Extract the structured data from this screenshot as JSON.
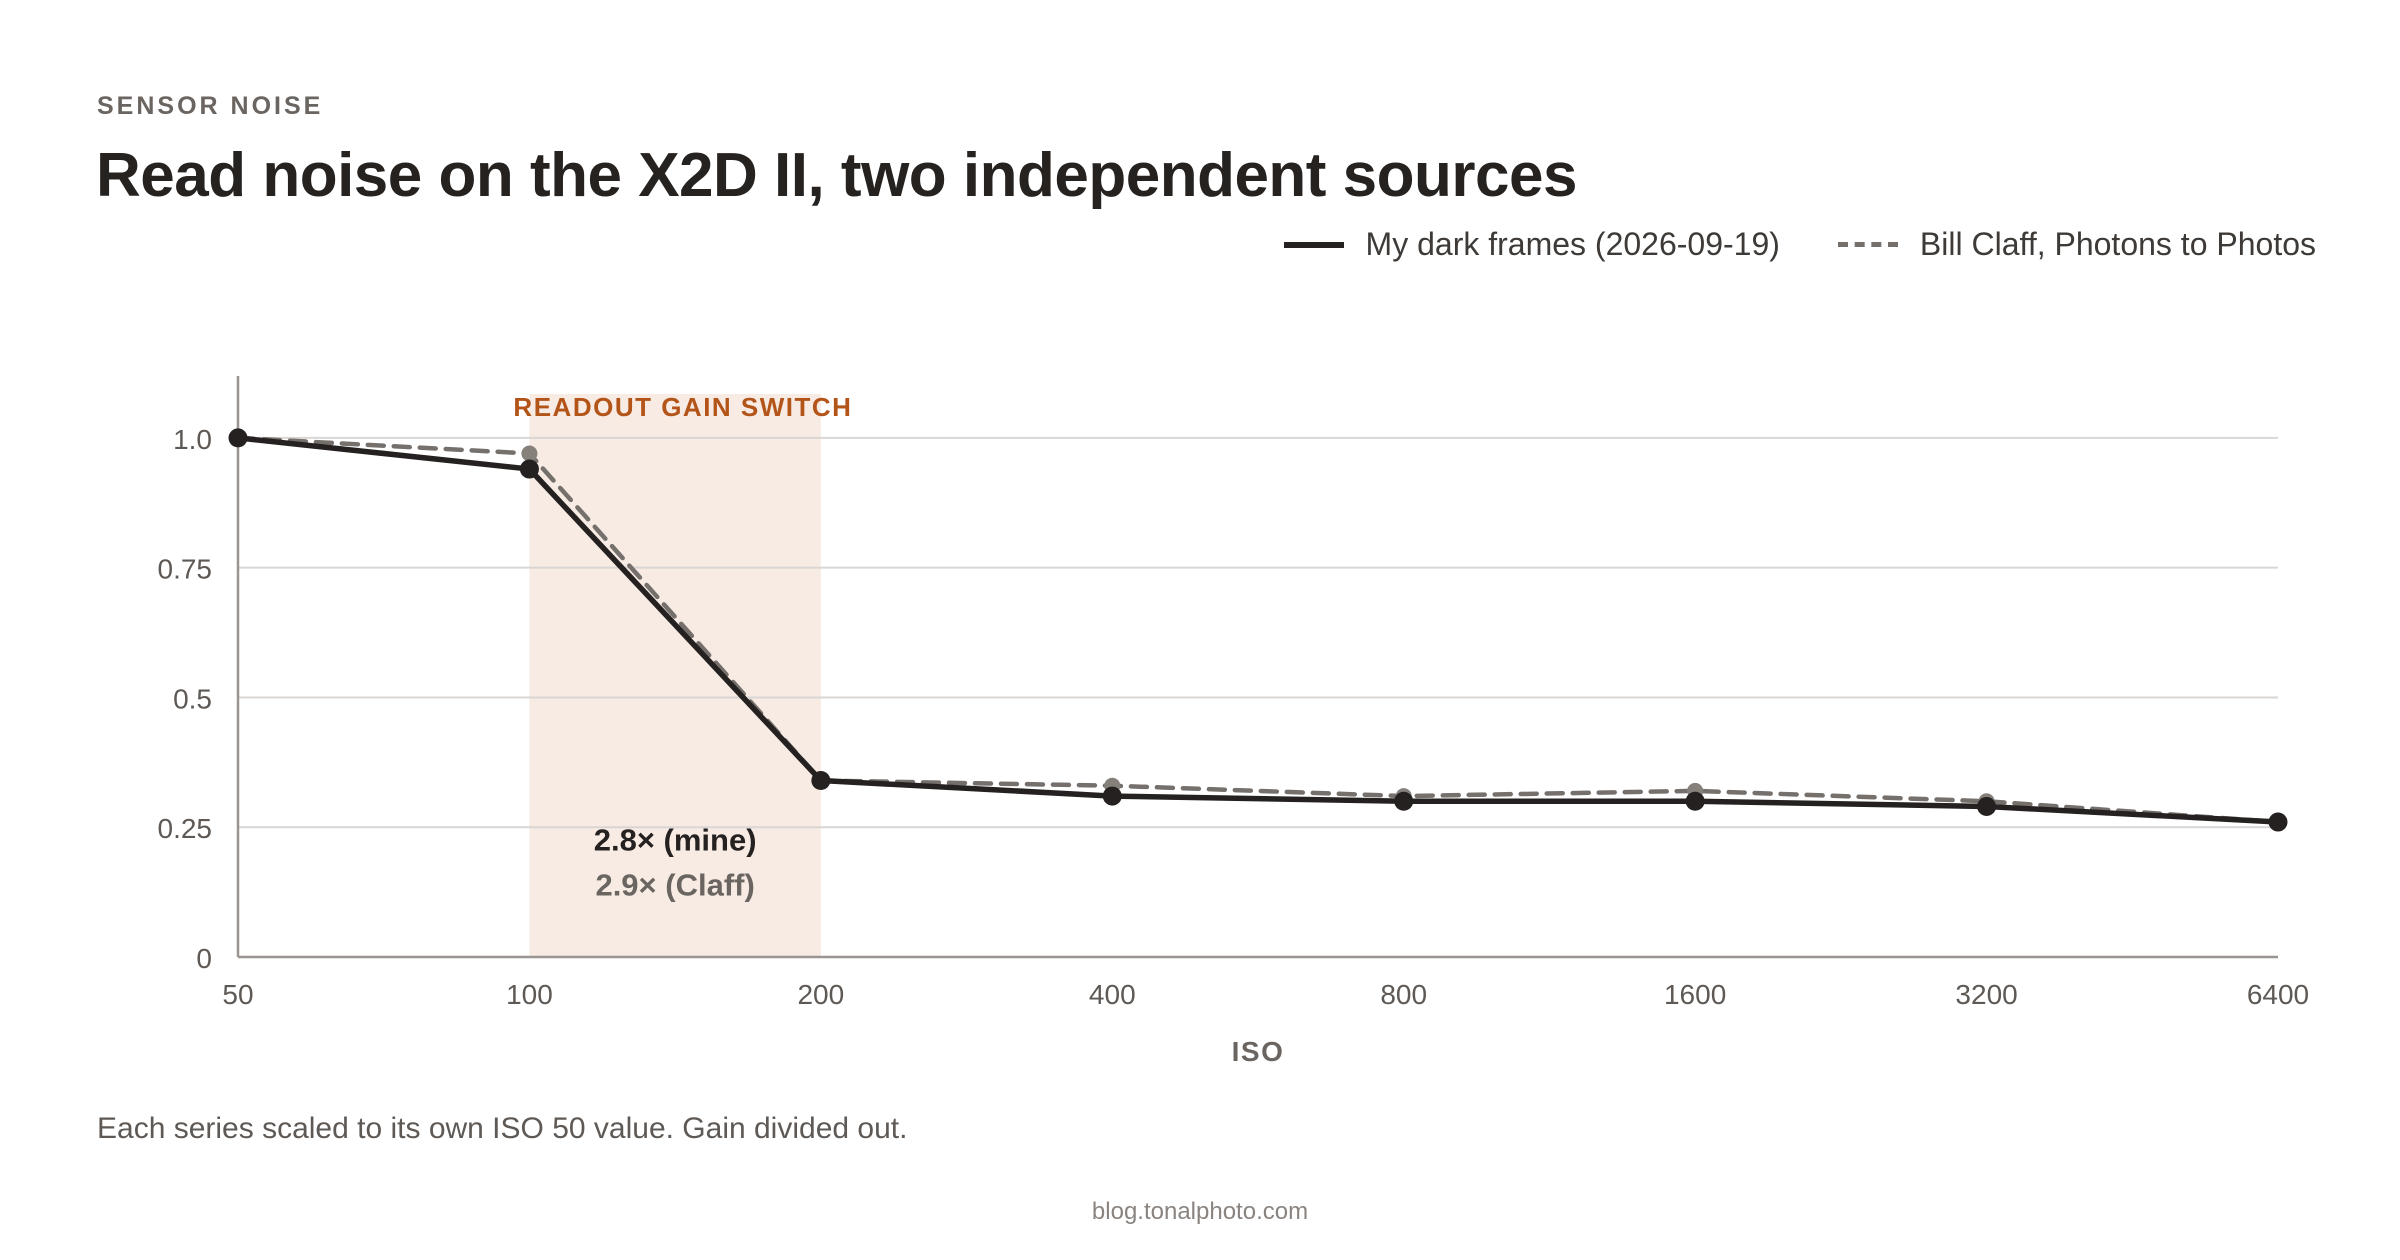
{
  "header": {
    "kicker": "SENSOR NOISE",
    "title": "Read noise on the X2D II, two independent sources"
  },
  "legend": {
    "placement": "top-right",
    "items": [
      {
        "label": "My dark frames (2026-09-19)",
        "style": "solid"
      },
      {
        "label": "Bill Claff, Photons to Photos",
        "style": "dashed"
      }
    ]
  },
  "chart_data": {
    "type": "line",
    "title": "Read noise on the X2D II, two independent sources",
    "xlabel": "ISO",
    "ylabel": "",
    "x_scale": "log2",
    "x": [
      50,
      100,
      200,
      400,
      800,
      1600,
      3200,
      6400
    ],
    "x_tick_labels": [
      "50",
      "100",
      "200",
      "400",
      "800",
      "1600",
      "3200",
      "6400"
    ],
    "ylim": [
      0,
      1.1
    ],
    "y_ticks": [
      0,
      0.25,
      0.5,
      0.75,
      1.0
    ],
    "y_tick_labels": [
      "0",
      "0.25",
      "0.5",
      "0.75",
      "1.0"
    ],
    "grid": "horizontal",
    "series": [
      {
        "name": "My dark frames (2026-09-19)",
        "style": "solid",
        "color": "#242120",
        "values": [
          1.0,
          0.94,
          0.34,
          0.31,
          0.3,
          0.3,
          0.29,
          0.26
        ]
      },
      {
        "name": "Bill Claff, Photons to Photos",
        "style": "dashed",
        "color": "#75706c",
        "values": [
          1.0,
          0.97,
          0.34,
          0.33,
          0.31,
          0.32,
          0.3,
          0.26
        ]
      }
    ],
    "highlight_band": {
      "x_start": 100,
      "x_end": 200,
      "label": "READOUT GAIN SWITCH",
      "color": "#f7ebe4",
      "label_color": "#b35418"
    },
    "annotations": [
      "2.8× (mine)",
      "2.9× (Claff)"
    ]
  },
  "note": "Each series scaled to its own ISO 50 value. Gain divided out.",
  "footer": "blog.tonalphoto.com"
}
